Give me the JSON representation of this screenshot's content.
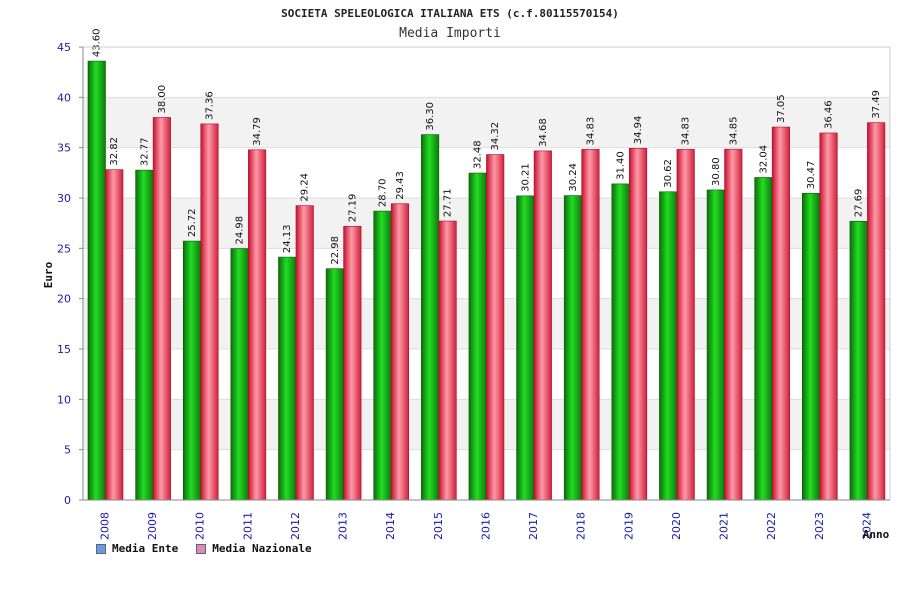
{
  "chart_data": {
    "type": "bar",
    "title": "SOCIETA SPELEOLOGICA ITALIANA ETS (c.f.80115570154)",
    "subtitle": "Media Importi",
    "xlabel": "Anno",
    "ylabel": "Euro",
    "ylim": [
      0,
      45
    ],
    "yticks": [
      0,
      5,
      10,
      15,
      20,
      25,
      30,
      35,
      40,
      45
    ],
    "grid": true,
    "legend_position": "bottom-left",
    "categories": [
      "2008",
      "2009",
      "2010",
      "2011",
      "2012",
      "2013",
      "2014",
      "2015",
      "2016",
      "2017",
      "2018",
      "2019",
      "2020",
      "2021",
      "2022",
      "2023",
      "2024"
    ],
    "series": [
      {
        "name": "Media Ente",
        "color": "#1a9e1a",
        "legend_color": "#6699ee",
        "values": [
          43.6,
          32.77,
          25.72,
          24.98,
          24.13,
          22.98,
          28.7,
          36.3,
          32.48,
          30.21,
          30.24,
          31.4,
          30.62,
          30.8,
          32.04,
          30.47,
          27.69
        ]
      },
      {
        "name": "Media Nazionale",
        "color": "#e8385a",
        "legend_color": "#dd88bb",
        "values": [
          32.82,
          38.0,
          37.36,
          34.79,
          29.24,
          27.19,
          29.43,
          27.71,
          34.32,
          34.68,
          34.83,
          34.94,
          34.83,
          34.85,
          37.05,
          36.46,
          37.49
        ]
      }
    ]
  }
}
